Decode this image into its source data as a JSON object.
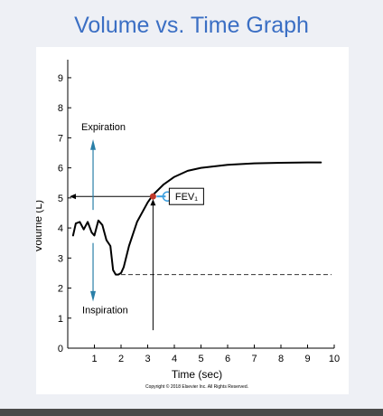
{
  "slide": {
    "title": "Volume vs. Time Graph",
    "copyright": "Copyright © 2018 Elsevier Inc. All Rights Reserved.",
    "accent_color": "#3b6fc4"
  },
  "chart_data": {
    "type": "line",
    "title": "",
    "xlabel": "Time (sec)",
    "ylabel": "Volume (L)",
    "xlim": [
      0,
      10
    ],
    "ylim": [
      0,
      9.6
    ],
    "x_ticks": [
      1,
      2,
      3,
      4,
      5,
      6,
      7,
      8,
      9,
      10
    ],
    "y_ticks": [
      0,
      1,
      2,
      3,
      4,
      5,
      6,
      7,
      8,
      9
    ],
    "grid": false,
    "series": [
      {
        "x": [
          0.2,
          0.3,
          0.45,
          0.6,
          0.75,
          0.9,
          1.0,
          1.15,
          1.3,
          1.45,
          1.6,
          1.7,
          1.8,
          1.9,
          2.0,
          2.1,
          2.3,
          2.6,
          3.0,
          3.2,
          3.6,
          4.0,
          4.5,
          5.0,
          6.0,
          7.0,
          8.0,
          9.0,
          9.5
        ],
        "y": [
          3.75,
          4.15,
          4.2,
          3.95,
          4.2,
          3.85,
          3.75,
          4.25,
          4.1,
          3.6,
          3.4,
          2.6,
          2.45,
          2.45,
          2.5,
          2.7,
          3.4,
          4.2,
          4.85,
          5.1,
          5.45,
          5.7,
          5.9,
          6.0,
          6.1,
          6.15,
          6.17,
          6.18,
          6.18
        ]
      }
    ],
    "reference_lines": [
      {
        "type": "horizontal-dashed",
        "y": 2.45,
        "x_start": 2.0,
        "x_end": 10.0
      }
    ],
    "marker": {
      "x": 3.2,
      "y": 5.05,
      "label": "FEV₁",
      "color": "#c0392b"
    },
    "annotations": [
      {
        "text": "Expiration",
        "arrow": "up",
        "color": "#2a7fa8"
      },
      {
        "text": "Inspiration",
        "arrow": "down",
        "color": "#2a7fa8"
      }
    ]
  }
}
